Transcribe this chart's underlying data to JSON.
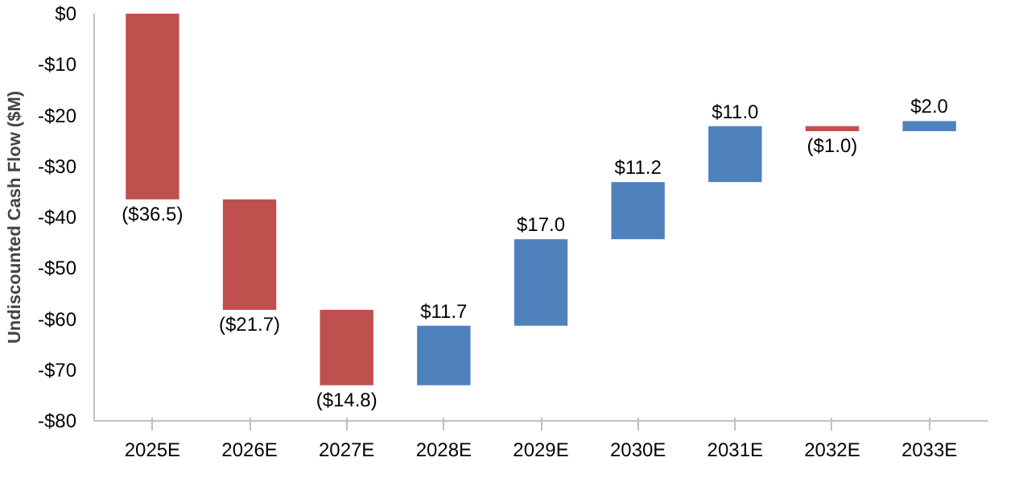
{
  "chart_data": {
    "type": "bar",
    "ylabel": "Undiscounted Cash Flow ($M)",
    "categories": [
      "2025E",
      "2026E",
      "2027E",
      "2028E",
      "2029E",
      "2030E",
      "2031E",
      "2032E",
      "2033E"
    ],
    "values": [
      -36.5,
      -21.7,
      -14.8,
      11.7,
      17.0,
      11.2,
      11.0,
      -1.0,
      2.0
    ],
    "base": [
      0,
      -36.5,
      -58.2,
      -73.0,
      -61.3,
      -44.3,
      -33.1,
      -22.1,
      -23.1
    ],
    "colors": [
      "#c0504d",
      "#c0504d",
      "#c0504d",
      "#4f81bd",
      "#4f81bd",
      "#4f81bd",
      "#4f81bd",
      "#c0504d",
      "#4f81bd"
    ],
    "value_labels": [
      "($36.5)",
      "($21.7)",
      "($14.8)",
      "$11.7",
      "$17.0",
      "$11.2",
      "$11.0",
      "($1.0)",
      "$2.0"
    ],
    "ylim": [
      -80,
      0
    ],
    "yticks": [
      {
        "value": 0,
        "label": "$0"
      },
      {
        "value": -10,
        "label": "-$10"
      },
      {
        "value": -20,
        "label": "-$20"
      },
      {
        "value": -30,
        "label": "-$30"
      },
      {
        "value": -40,
        "label": "-$40"
      },
      {
        "value": -50,
        "label": "-$50"
      },
      {
        "value": -60,
        "label": "-$60"
      },
      {
        "value": -70,
        "label": "-$70"
      },
      {
        "value": -80,
        "label": "-$80"
      }
    ],
    "grid": false
  }
}
